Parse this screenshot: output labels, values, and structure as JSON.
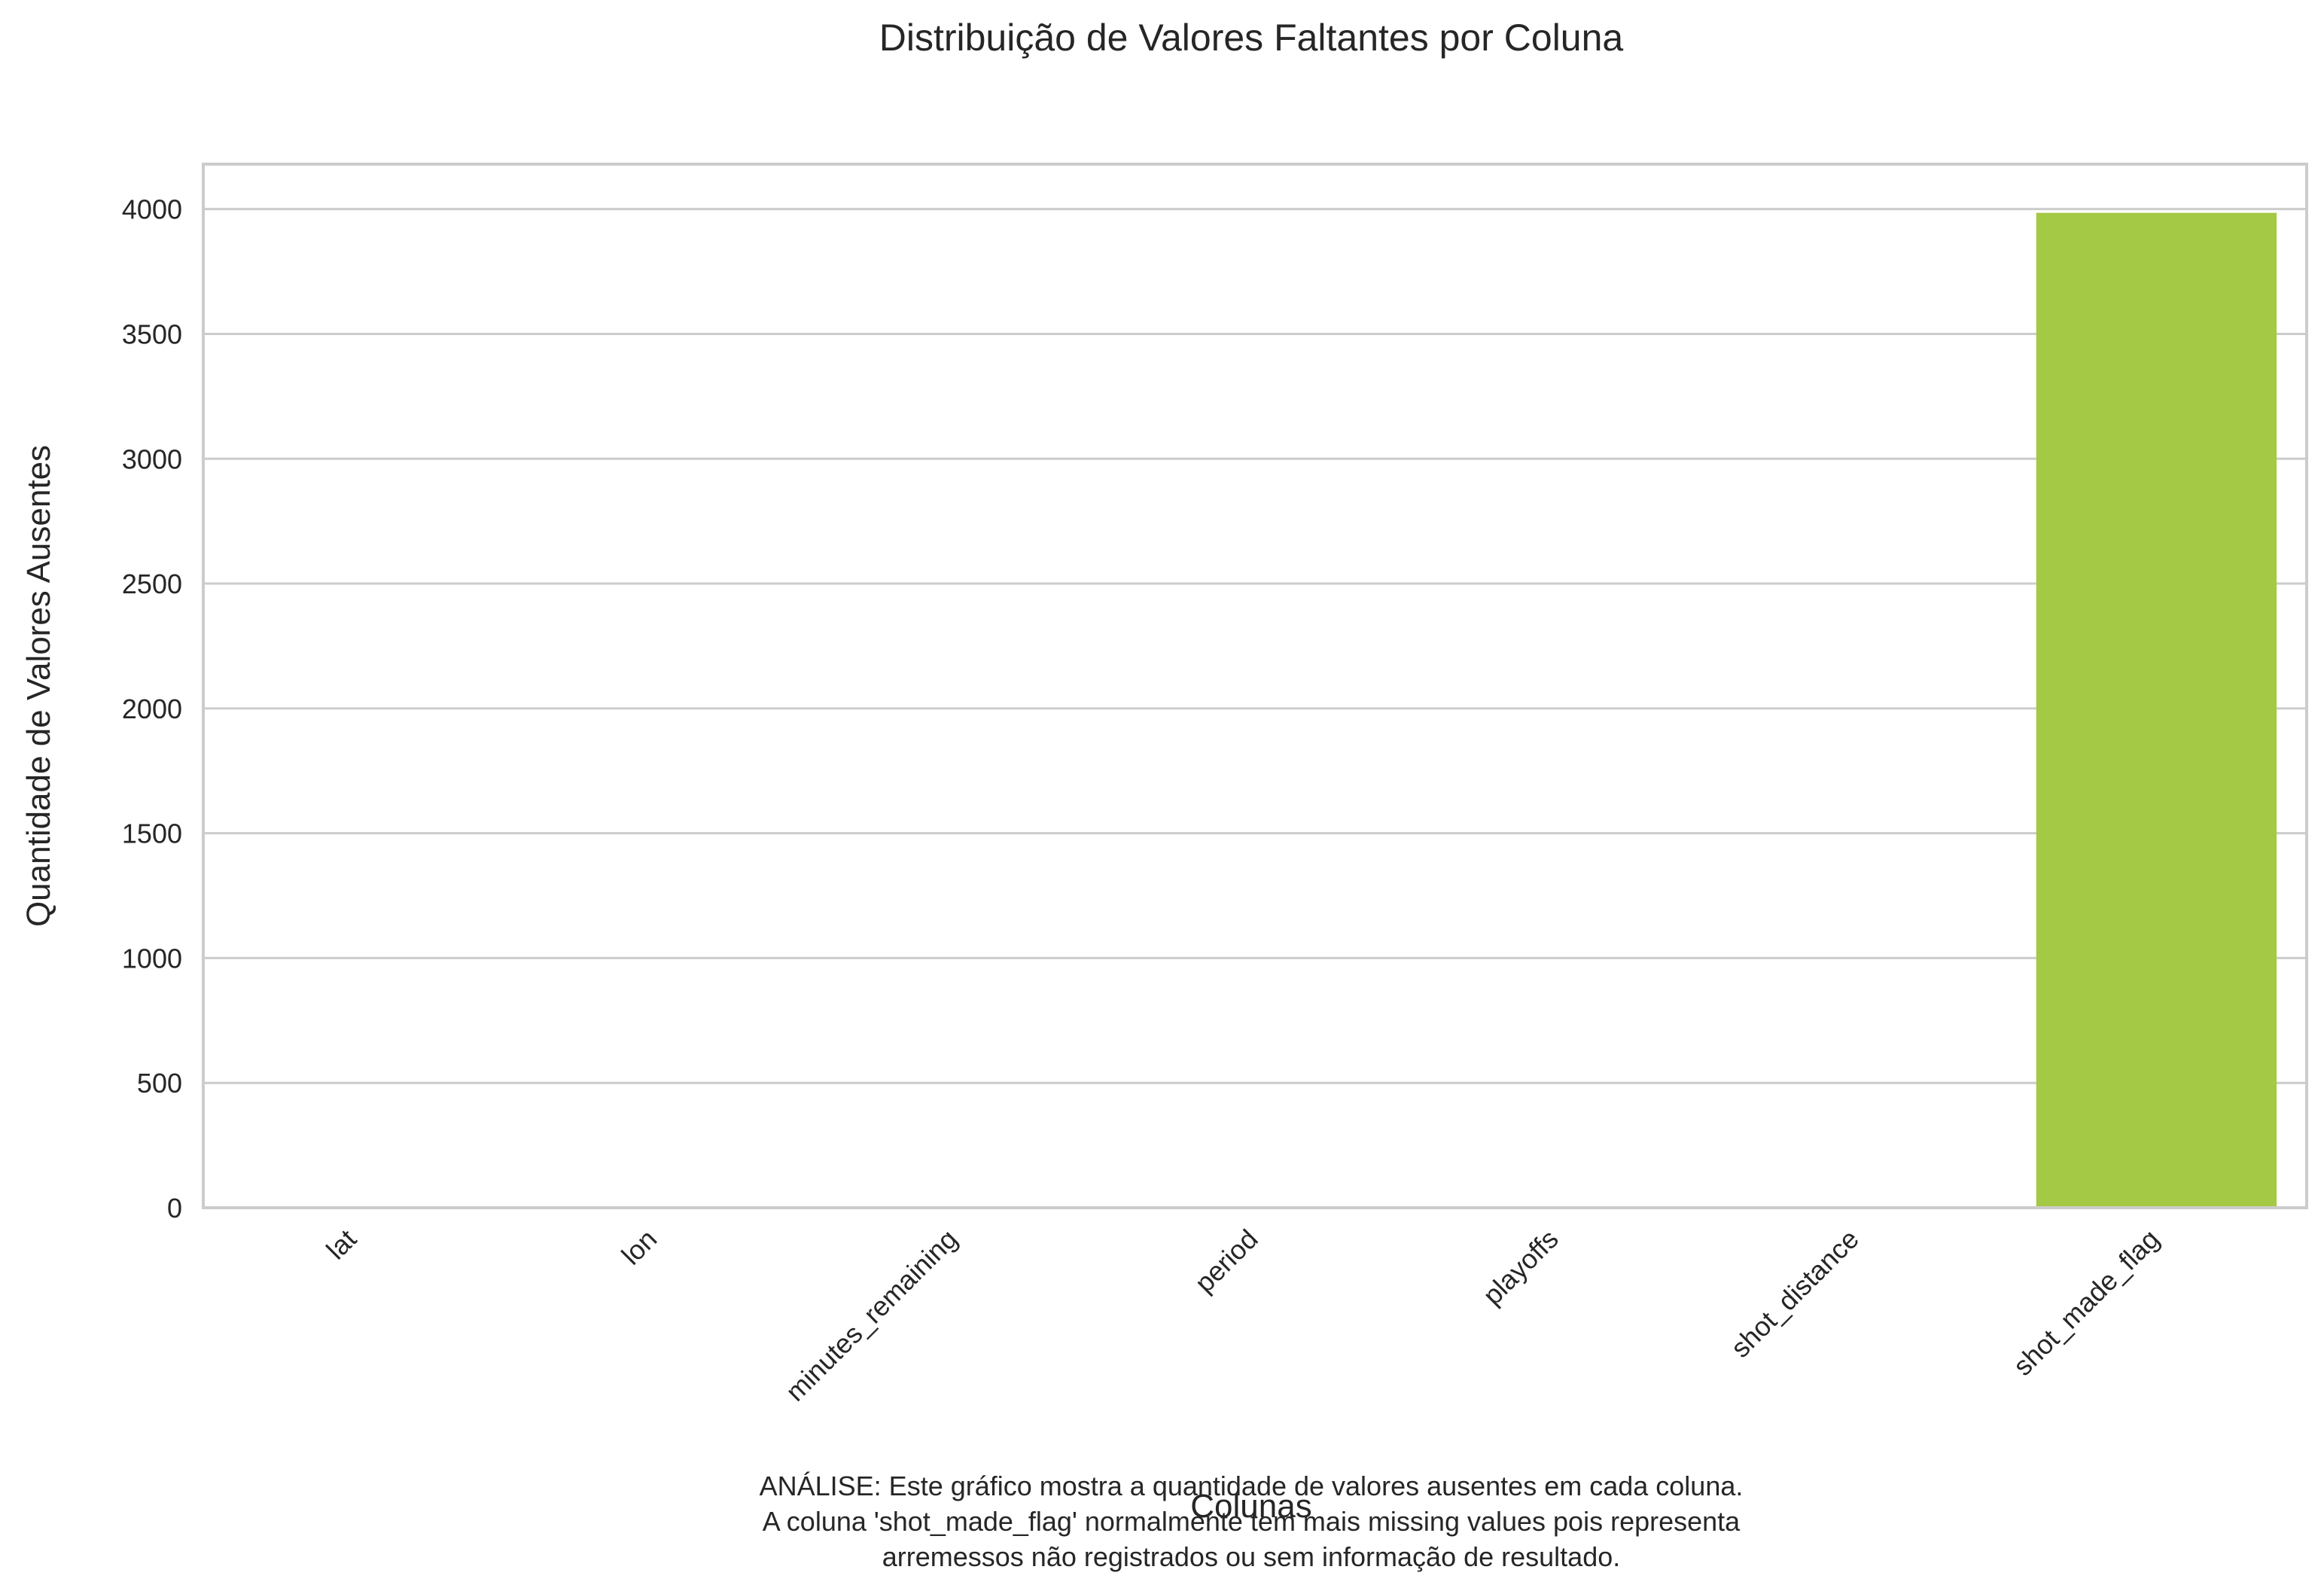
{
  "chart_data": {
    "type": "bar",
    "title": "Distribuição de Valores Faltantes por Coluna",
    "xlabel": "Colunas",
    "ylabel": "Quantidade de Valores Ausentes",
    "categories": [
      "lat",
      "lon",
      "minutes_remaining",
      "period",
      "playoffs",
      "shot_distance",
      "shot_made_flag"
    ],
    "values": [
      0,
      0,
      0,
      0,
      0,
      0,
      3985
    ],
    "ylim": [
      0,
      4180
    ],
    "yticks": [
      0,
      500,
      1000,
      1500,
      2000,
      2500,
      3000,
      3500,
      4000
    ],
    "ytick_labels": [
      "0",
      "500",
      "1000",
      "1500",
      "2000",
      "2500",
      "3000",
      "3500",
      "4000"
    ],
    "grid": true,
    "bar_color": "#a4c945",
    "annotation": [
      "ANÁLISE: Este gráfico mostra a quantidade de valores ausentes em cada coluna.",
      "A coluna 'shot_made_flag' normalmente tem mais missing values pois representa",
      "arremessos não registrados ou sem informação de resultado."
    ]
  }
}
